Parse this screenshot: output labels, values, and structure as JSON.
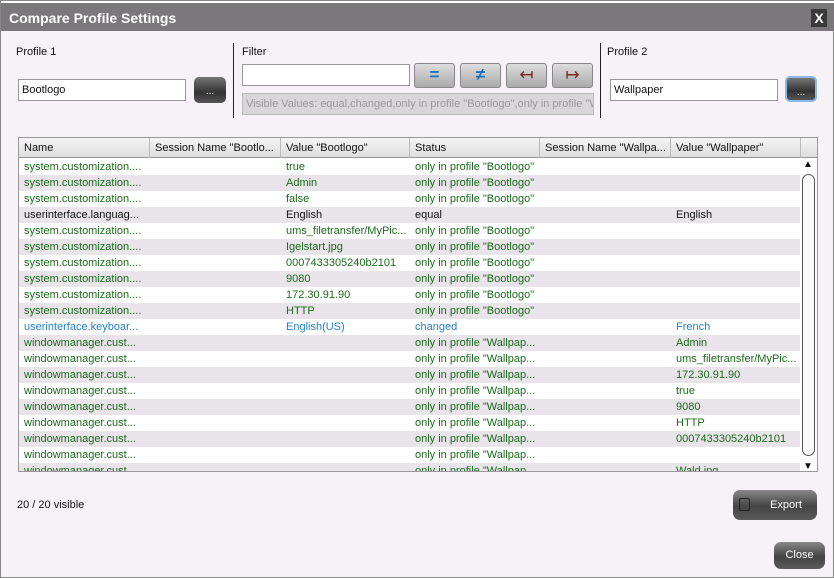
{
  "window": {
    "title": "Compare Profile Settings",
    "close_label": "X"
  },
  "profile1": {
    "label": "Profile 1",
    "value": "Bootlogo",
    "browse_label": "..."
  },
  "profile2": {
    "label": "Profile 2",
    "value": "Wallpaper",
    "browse_label": "..."
  },
  "filter": {
    "label": "Filter",
    "value": "",
    "buttons": [
      {
        "name": "equal",
        "glyph": "="
      },
      {
        "name": "not-equal",
        "glyph": "≠"
      },
      {
        "name": "only-left",
        "glyph": "↤"
      },
      {
        "name": "only-right",
        "glyph": "↦"
      }
    ],
    "visible_values": "Visible Values: equal,changed,only in profile \"Bootlogo\",only in profile \"Wallpaper\""
  },
  "table": {
    "columns": [
      "Name",
      "Session Name \"Bootlo...",
      "Value \"Bootlogo\"",
      "Status",
      "Session Name \"Wallpa...",
      "Value \"Wallpaper\""
    ],
    "rows": [
      [
        "system.customization....",
        "",
        "true",
        "only in profile \"Bootlogo\"",
        "",
        "",
        "g"
      ],
      [
        "system.customization....",
        "",
        "Admin",
        "only in profile \"Bootlogo\"",
        "",
        "",
        "g"
      ],
      [
        "system.customization....",
        "",
        "false",
        "only in profile \"Bootlogo\"",
        "",
        "",
        "g"
      ],
      [
        "userinterface.languag...",
        "",
        "English",
        "equal",
        "",
        "English",
        "k"
      ],
      [
        "system.customization....",
        "",
        "ums_filetransfer/MyPic...",
        "only in profile \"Bootlogo\"",
        "",
        "",
        "g"
      ],
      [
        "system.customization....",
        "",
        "Igelstart.jpg",
        "only in profile \"Bootlogo\"",
        "",
        "",
        "g"
      ],
      [
        "system.customization....",
        "",
        "0007433305240b2101",
        "only in profile \"Bootlogo\"",
        "",
        "",
        "g"
      ],
      [
        "system.customization....",
        "",
        "9080",
        "only in profile \"Bootlogo\"",
        "",
        "",
        "g"
      ],
      [
        "system.customization....",
        "",
        "172.30.91.90",
        "only in profile \"Bootlogo\"",
        "",
        "",
        "g"
      ],
      [
        "system.customization....",
        "",
        "HTTP",
        "only in profile \"Bootlogo\"",
        "",
        "",
        "g"
      ],
      [
        "userinterface.keyboar...",
        "",
        "English(US)",
        "changed",
        "",
        "French",
        "b"
      ],
      [
        "windowmanager.cust...",
        "",
        "",
        "only in profile \"Wallpap...",
        "",
        "Admin",
        "g"
      ],
      [
        "windowmanager.cust...",
        "",
        "",
        "only in profile \"Wallpap...",
        "",
        "ums_filetransfer/MyPic...",
        "g"
      ],
      [
        "windowmanager.cust...",
        "",
        "",
        "only in profile \"Wallpap...",
        "",
        "172.30.91.90",
        "g"
      ],
      [
        "windowmanager.cust...",
        "",
        "",
        "only in profile \"Wallpap...",
        "",
        "true",
        "g"
      ],
      [
        "windowmanager.cust...",
        "",
        "",
        "only in profile \"Wallpap...",
        "",
        "9080",
        "g"
      ],
      [
        "windowmanager.cust...",
        "",
        "",
        "only in profile \"Wallpap...",
        "",
        "HTTP",
        "g"
      ],
      [
        "windowmanager.cust...",
        "",
        "",
        "only in profile \"Wallpap...",
        "",
        "0007433305240b2101",
        "g"
      ],
      [
        "windowmanager.cust...",
        "",
        "",
        "only in profile \"Wallpap...",
        "",
        "",
        "g"
      ],
      [
        "windowmanager.cust...",
        "",
        "",
        "only in profile \"Wallpap...",
        "",
        "Wald.jpg",
        "g"
      ]
    ]
  },
  "footer": {
    "count": "20 / 20 visible",
    "export_label": "Export",
    "close_label": "Close"
  },
  "colors": {
    "only_in_profile": "#1a6b1a",
    "changed": "#2680d0",
    "equal": "#111111"
  }
}
